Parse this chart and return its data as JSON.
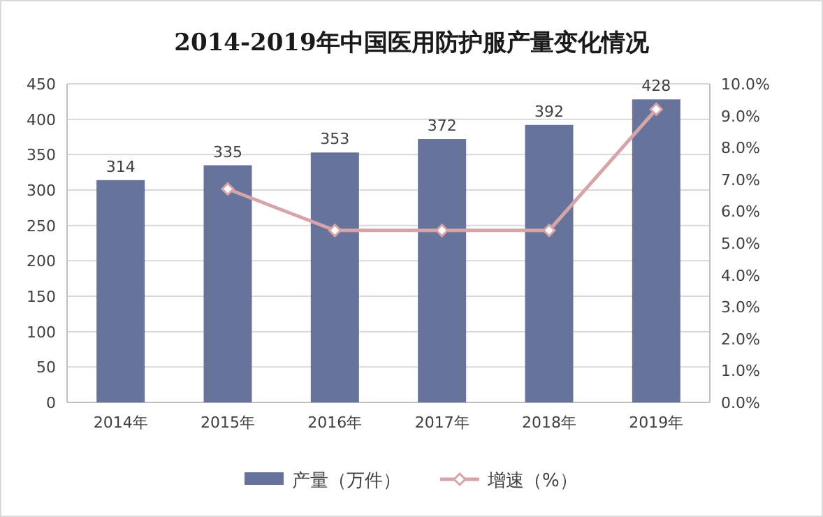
{
  "chart_data": {
    "type": "bar",
    "title": "2014-2019年中国医用防护服产量变化情况",
    "categories": [
      "2014年",
      "2015年",
      "2016年",
      "2017年",
      "2018年",
      "2019年"
    ],
    "series": [
      {
        "name": "产量（万件）",
        "color": "#67739b",
        "values": [
          314,
          335,
          353,
          372,
          392,
          428
        ],
        "value_labels": [
          "314",
          "335",
          "353",
          "372",
          "392",
          "428"
        ]
      },
      {
        "name": "增速（%）",
        "type": "line",
        "axis": "y2",
        "color": "#d5a5a9",
        "marker": "diamond",
        "values": [
          null,
          6.7,
          5.4,
          5.4,
          5.4,
          9.2
        ]
      }
    ],
    "ylim": [
      0,
      450
    ],
    "yticks": [
      0,
      50,
      100,
      150,
      200,
      250,
      300,
      350,
      400,
      450
    ],
    "y2lim": [
      0,
      10
    ],
    "y2ticks": [
      {
        "value": 0,
        "label": "0.0%"
      },
      {
        "value": 1,
        "label": "1.0%"
      },
      {
        "value": 2,
        "label": "2.0%"
      },
      {
        "value": 3,
        "label": "3.0%"
      },
      {
        "value": 4,
        "label": "4.0%"
      },
      {
        "value": 5,
        "label": "5.0%"
      },
      {
        "value": 6,
        "label": "6.0%"
      },
      {
        "value": 7,
        "label": "7.0%"
      },
      {
        "value": 8,
        "label": "8.0%"
      },
      {
        "value": 9,
        "label": "9.0%"
      },
      {
        "value": 10,
        "label": "10.0%"
      }
    ],
    "grid": "y",
    "legend": "bottom"
  }
}
